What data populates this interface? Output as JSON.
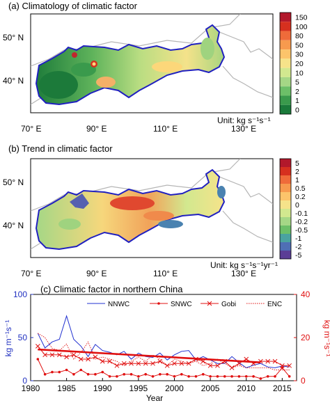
{
  "panel_a": {
    "title": "(a) Climatology of climatic factor",
    "unit": "Unit: kg s⁻¹s⁻¹",
    "lat_labels": [
      "50° N",
      "40° N"
    ],
    "lon_labels": [
      "70° E",
      "90° E",
      "110° E",
      "130° E"
    ],
    "colorbar": {
      "labels": [
        "150",
        "100",
        "80",
        "50",
        "30",
        "20",
        "10",
        "5",
        "2",
        "1",
        "0"
      ],
      "colors": [
        "#b2182b",
        "#d6301f",
        "#ef6b3a",
        "#f79a4e",
        "#fcc46b",
        "#f6e38a",
        "#d2e88f",
        "#a5d786",
        "#6cbf68",
        "#3a9a4c",
        "#1a7a3a"
      ]
    }
  },
  "panel_b": {
    "title": "(b) Trend in climatic factor",
    "unit": "Unit: kg s⁻¹s⁻¹yr⁻¹",
    "lat_labels": [
      "50° N",
      "40° N"
    ],
    "lon_labels": [
      "70° E",
      "90° E",
      "110° E",
      "130° E"
    ],
    "colorbar": {
      "labels": [
        "5",
        "2",
        "1",
        "0.5",
        "0.2",
        "0",
        "-0.1",
        "-0.2",
        "-0.5",
        "-1",
        "-2",
        "-5"
      ],
      "colors": [
        "#b2182b",
        "#d6301f",
        "#ef6b3a",
        "#f79a4e",
        "#fcc46b",
        "#f6e38a",
        "#d2e88f",
        "#a5d786",
        "#6cbf68",
        "#4aa3a0",
        "#4f6fb5",
        "#5b3e96"
      ]
    }
  },
  "chart_data": {
    "type": "line",
    "title": "(c) Climatic factor in northern China",
    "xlabel": "Year",
    "ylabel_left": "kg m⁻¹s⁻¹",
    "ylabel_right": "kg m⁻¹s⁻¹",
    "xlim": [
      1980,
      2017
    ],
    "ylim_left": [
      0,
      100
    ],
    "ylim_right": [
      0,
      40
    ],
    "x_ticks": [
      1980,
      1985,
      1990,
      1995,
      2000,
      2005,
      2010,
      2015
    ],
    "y_ticks_left": [
      0,
      50,
      100
    ],
    "y_ticks_right": [
      0,
      20,
      40
    ],
    "colors": {
      "left_axis": "#2030c0",
      "right_axis": "#e01010",
      "NNWC": "#2030d0",
      "SNWC": "#e01010",
      "Gobi": "#e01010",
      "ENC": "#e01010",
      "trend": "#e01010"
    },
    "x": [
      1981,
      1982,
      1983,
      1984,
      1985,
      1986,
      1987,
      1988,
      1989,
      1990,
      1991,
      1992,
      1993,
      1994,
      1995,
      1996,
      1997,
      1998,
      1999,
      2000,
      2001,
      2002,
      2003,
      2004,
      2005,
      2006,
      2007,
      2008,
      2009,
      2010,
      2011,
      2012,
      2013,
      2014,
      2015,
      2016
    ],
    "series": [
      {
        "name": "NNWC",
        "axis": "left",
        "style": "solid",
        "values": [
          55,
          38,
          45,
          48,
          75,
          48,
          40,
          28,
          42,
          35,
          33,
          30,
          34,
          25,
          32,
          28,
          27,
          32,
          24,
          30,
          34,
          35,
          24,
          28,
          24,
          20,
          20,
          28,
          21,
          15,
          18,
          20,
          16,
          15,
          17,
          16
        ]
      },
      {
        "name": "SNWC",
        "axis": "right",
        "style": "dot-line",
        "values": [
          10,
          3,
          4,
          4,
          5,
          3,
          5,
          3,
          3,
          4,
          2,
          2,
          3,
          3,
          2,
          3,
          2,
          3,
          3,
          2,
          3,
          2,
          2,
          3,
          2,
          2,
          2,
          2,
          2,
          2,
          2,
          1,
          2,
          2,
          6,
          2
        ]
      },
      {
        "name": "Gobi",
        "axis": "right",
        "style": "x-line",
        "values": [
          16,
          12,
          12,
          12,
          11,
          12,
          10,
          10,
          11,
          9,
          9,
          7,
          8,
          8,
          8,
          8,
          8,
          9,
          7,
          8,
          8,
          8,
          10,
          9,
          7,
          7,
          9,
          6,
          8,
          10,
          8,
          9,
          9,
          9,
          7,
          7
        ]
      },
      {
        "name": "ENC",
        "axis": "right",
        "style": "dotted",
        "values": [
          22,
          20,
          15,
          14,
          17,
          10,
          13,
          18,
          10,
          11,
          10,
          9,
          7,
          9,
          11,
          9,
          12,
          10,
          7,
          10,
          9,
          8,
          9,
          7,
          8,
          10,
          8,
          6,
          7,
          6,
          6,
          6,
          6,
          5,
          5,
          5
        ]
      }
    ],
    "trend": {
      "axis": "right",
      "x": [
        1981,
        2012
      ],
      "y": [
        14.5,
        8.5
      ]
    },
    "legend": {
      "position": "top",
      "entries": [
        "NNWC",
        "SNWC",
        "Gobi",
        "ENC"
      ]
    }
  }
}
